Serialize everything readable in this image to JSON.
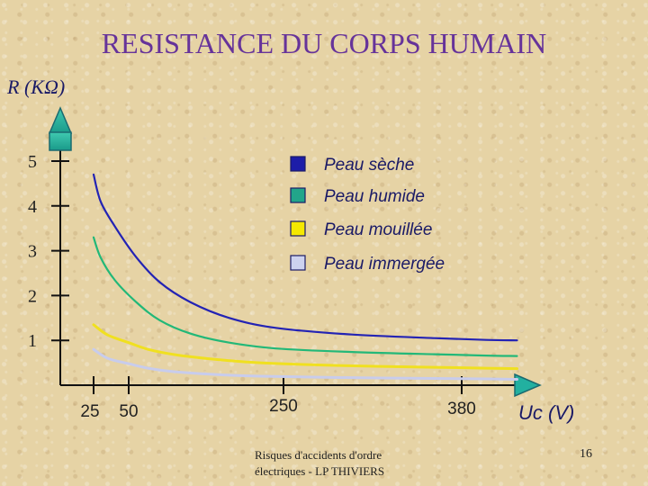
{
  "page": {
    "title": "RESISTANCE DU CORPS HUMAIN",
    "footer": "Risques d'accidents d'ordre électriques - LP THIVIERS",
    "page_number": "16"
  },
  "chart_data": {
    "type": "line",
    "title": "RESISTANCE DU CORPS HUMAIN",
    "ylabel": "R (KΩ)",
    "xlabel": "Uc (V)",
    "y_ticks": [
      1,
      2,
      3,
      4,
      5
    ],
    "x_ticks": [
      25,
      50,
      250,
      380
    ],
    "ylim": [
      0,
      5.6
    ],
    "xlim": [
      0,
      500
    ],
    "legend_position": "top-right",
    "grid": false,
    "series": [
      {
        "name": "Peau sèche",
        "color": "#2323b4",
        "marker_fill": "#1d1da8",
        "x": [
          25,
          30,
          40,
          60,
          90,
          130,
          180,
          240,
          300,
          360,
          420,
          470
        ],
        "y": [
          4.7,
          4.1,
          3.55,
          2.85,
          2.3,
          1.85,
          1.5,
          1.28,
          1.13,
          1.05,
          1.01,
          1.0
        ]
      },
      {
        "name": "Peau humide",
        "color": "#22b878",
        "marker_fill": "#22a58a",
        "x": [
          25,
          30,
          40,
          60,
          90,
          130,
          180,
          240,
          300,
          360,
          420,
          470
        ],
        "y": [
          3.3,
          2.85,
          2.35,
          1.85,
          1.45,
          1.15,
          0.95,
          0.82,
          0.74,
          0.69,
          0.66,
          0.65
        ]
      },
      {
        "name": "Peau mouillée",
        "color": "#f0e020",
        "marker_fill": "#f5e800",
        "x": [
          25,
          35,
          50,
          75,
          110,
          160,
          220,
          290,
          360,
          420,
          470
        ],
        "y": [
          1.35,
          1.12,
          0.95,
          0.8,
          0.68,
          0.58,
          0.5,
          0.44,
          0.4,
          0.38,
          0.37
        ]
      },
      {
        "name": "Peau immergée",
        "color": "#c8ccec",
        "marker_fill": "#cdd2ef",
        "x": [
          25,
          35,
          50,
          75,
          110,
          160,
          220,
          290,
          360,
          420,
          470
        ],
        "y": [
          0.8,
          0.6,
          0.48,
          0.38,
          0.3,
          0.24,
          0.2,
          0.17,
          0.15,
          0.14,
          0.13
        ]
      }
    ]
  }
}
